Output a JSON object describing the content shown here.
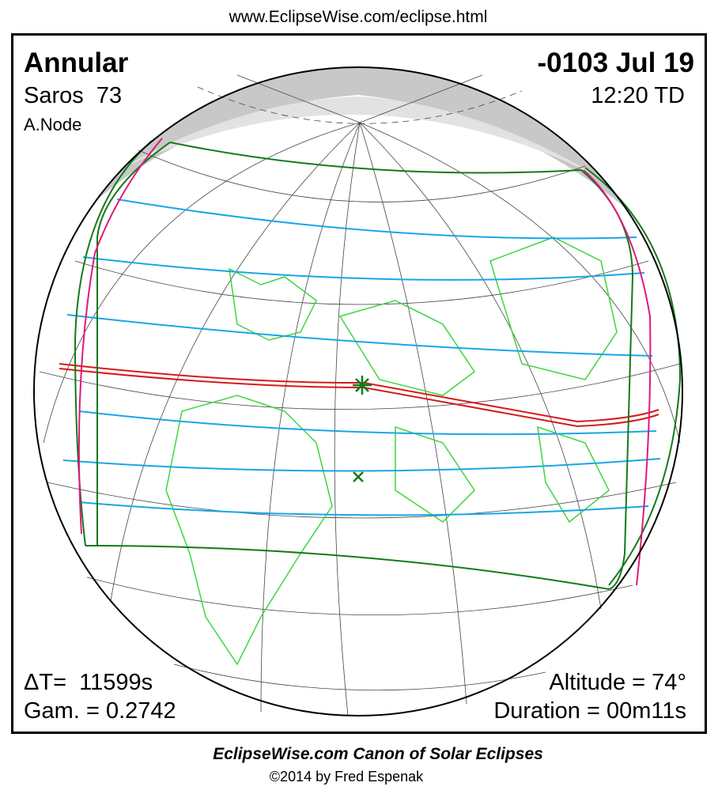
{
  "header": {
    "url": "www.EclipseWise.com/eclipse.html"
  },
  "panel": {
    "eclipse_type": "Annular",
    "saros": "Saros  73",
    "node": "A.Node",
    "date": "-0103 Jul 19",
    "time": "12:20 TD",
    "delta_t": "ΔT=  11599s",
    "gamma": "Gam. = 0.2742",
    "altitude": "Altitude = 74°",
    "duration": "Duration = 00m11s"
  },
  "footer": {
    "title": "EclipseWise.com Canon of Solar Eclipses",
    "credit": "©2014 by Fred Espenak"
  }
}
